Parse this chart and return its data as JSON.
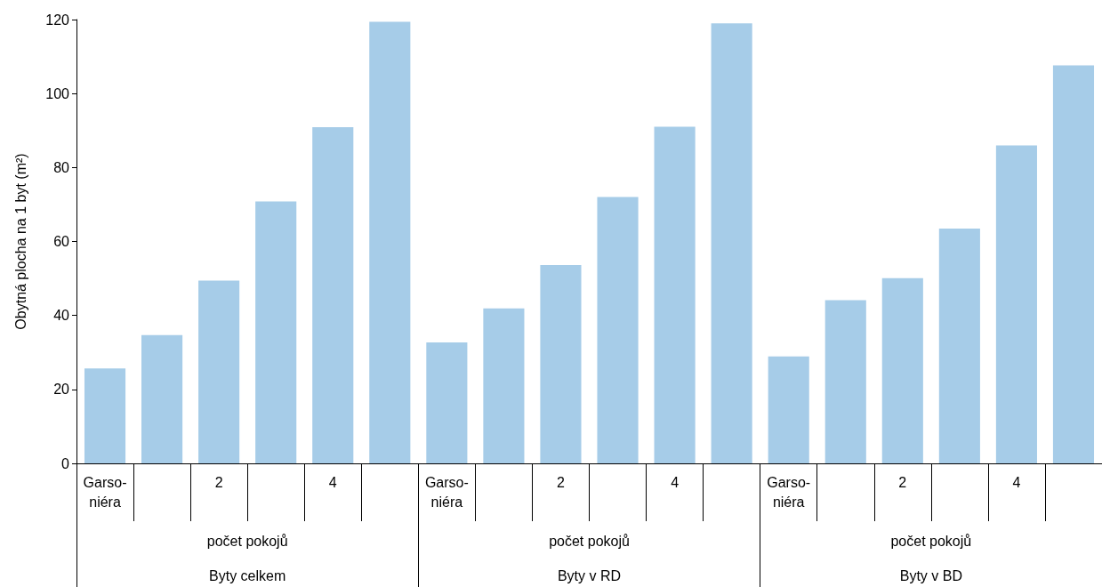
{
  "chart_data": {
    "type": "bar",
    "ylabel": "Obytná plocha na 1 byt (m²)",
    "categories": [
      "Garso-\nniéra",
      null,
      "2",
      null,
      "4",
      null,
      "Garso-\nniéra",
      null,
      "2",
      null,
      "4",
      null,
      "Garso-\nniéra",
      null,
      "2",
      null,
      "4",
      null
    ],
    "values": [
      25.7,
      34.7,
      49.4,
      70.8,
      90.9,
      119.4,
      32.7,
      41.9,
      53.6,
      72,
      91,
      119,
      28.9,
      44.1,
      50.1,
      63.5,
      86,
      107.6
    ],
    "color": "#a6cce8",
    "ylim": [
      0,
      120
    ],
    "yticks": [
      0,
      20,
      40,
      60,
      80,
      100,
      120
    ],
    "annotations": [
      "počet pokojů",
      "Byty celkem",
      "počet pokojů",
      "Byty v RD",
      "počet pokojů",
      "Byty v BD"
    ]
  }
}
